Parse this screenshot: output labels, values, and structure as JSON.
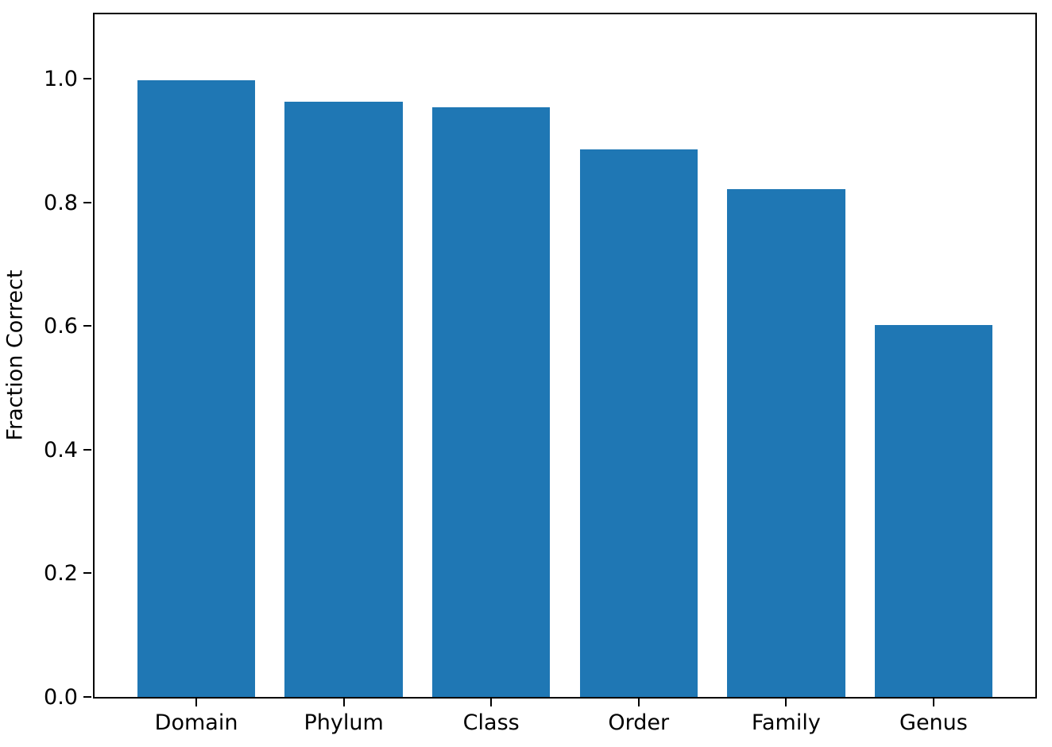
{
  "chart_data": {
    "type": "bar",
    "title": "",
    "categories": [
      "Domain",
      "Phylum",
      "Class",
      "Order",
      "Family",
      "Genus"
    ],
    "values": [
      0.997,
      0.963,
      0.954,
      0.886,
      0.821,
      0.601
    ],
    "xlabel": "",
    "ylabel": "Fraction Correct",
    "yticks": [
      0.0,
      0.2,
      0.4,
      0.6,
      0.8,
      1.0
    ],
    "ytick_labels": [
      "0.0",
      "0.2",
      "0.4",
      "0.6",
      "0.8",
      "1.0"
    ],
    "ylim": [
      0,
      1.104
    ],
    "xlim": [
      -0.69,
      5.69
    ],
    "bar_width_fraction": 0.8,
    "bar_color": "#1f77b4",
    "spine_color": "#000000",
    "text_color": "#000000",
    "background_color": "#ffffff",
    "grid": false,
    "legend": null
  }
}
